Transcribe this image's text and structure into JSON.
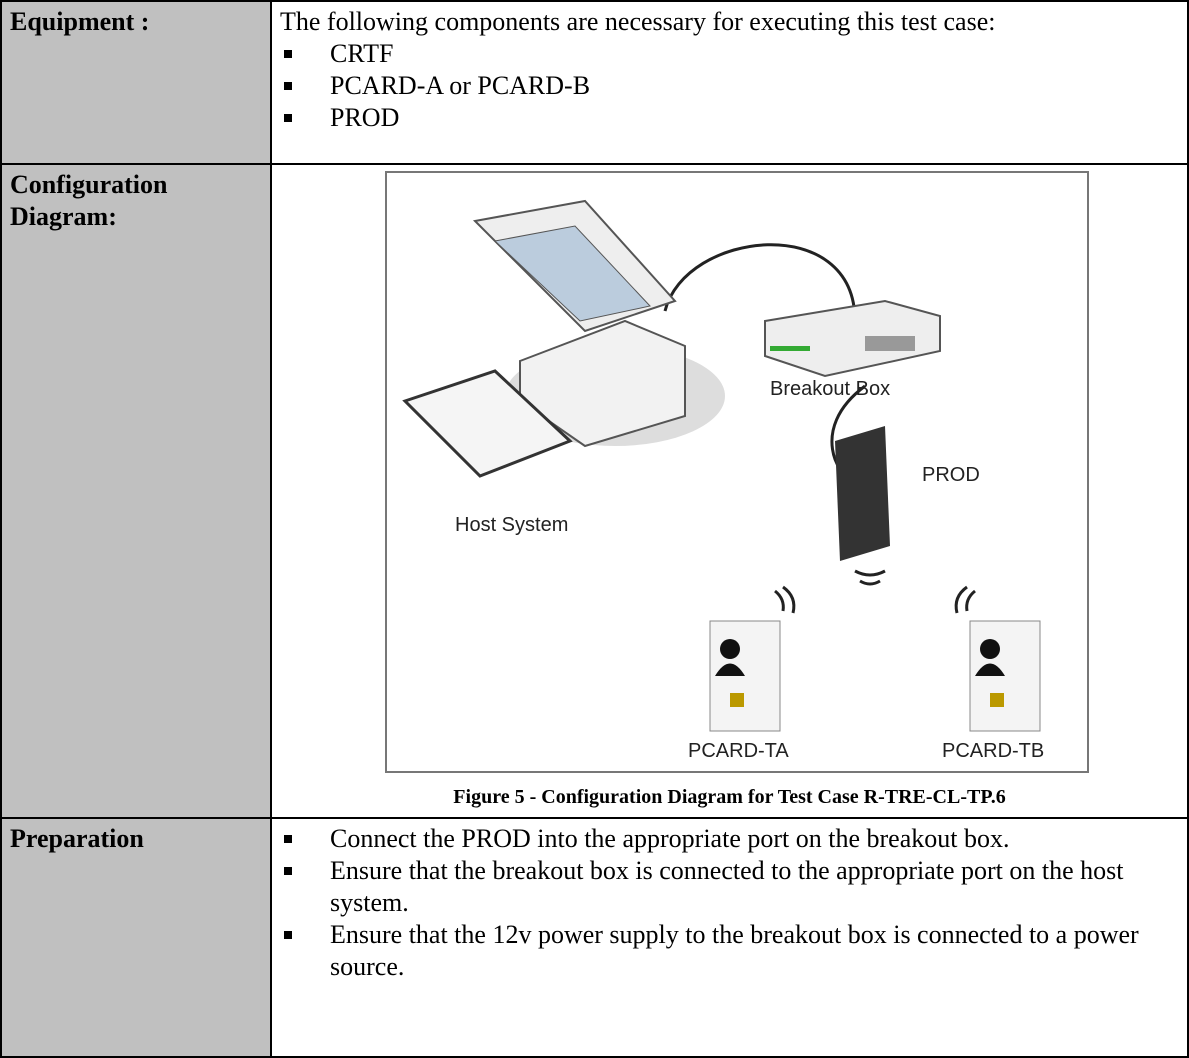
{
  "table": {
    "rows": [
      {
        "label": "Equipment :",
        "intro": "The following components are necessary for executing this test case:",
        "items": [
          "CRTF",
          "PCARD-A or PCARD-B",
          "PROD"
        ]
      },
      {
        "label": "Configuration Diagram:",
        "diagram": {
          "host": "Host System",
          "breakout": "Breakout Box",
          "reader": "PROD",
          "card_a": "PCARD-TA",
          "card_b": "PCARD-TB"
        },
        "caption": "Figure 5 - Configuration Diagram for Test Case R-TRE-CL-TP.6"
      },
      {
        "label": "Preparation",
        "items": [
          "Connect the PROD into the appropriate port on the breakout box.",
          "Ensure that the breakout box is connected to the appropriate port on the host system.",
          "Ensure that the 12v power supply to the breakout box is connected to a power source."
        ]
      }
    ]
  }
}
